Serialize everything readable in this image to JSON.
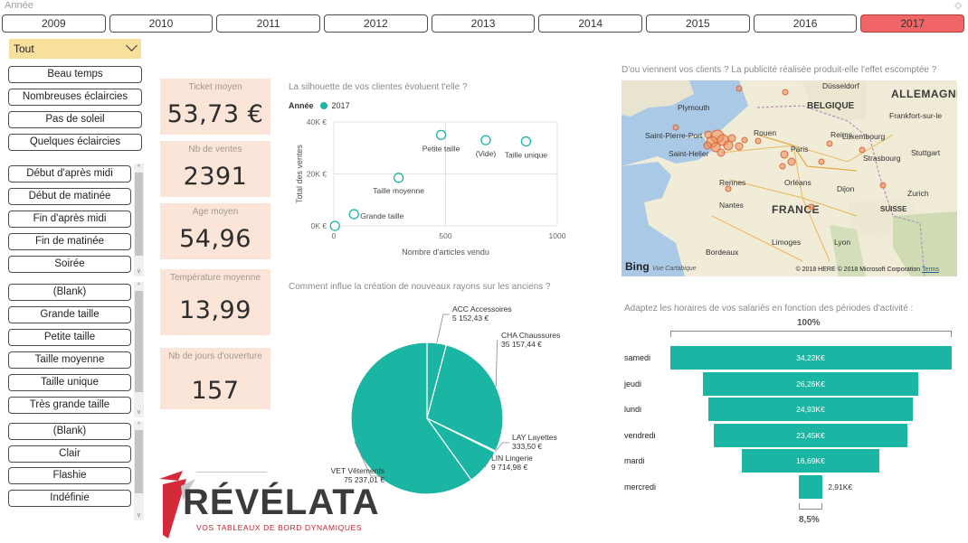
{
  "year_slicer": {
    "title": "Année",
    "years": [
      "2009",
      "2010",
      "2011",
      "2012",
      "2013",
      "2014",
      "2015",
      "2016",
      "2017"
    ],
    "selected": "2017",
    "colors": {
      "selected": "#f06565"
    }
  },
  "dropdown": {
    "value": "Tout"
  },
  "weather_slicer": [
    "Beau temps",
    "Nombreuses éclaircies",
    "Pas de soleil",
    "Quelques éclaircies"
  ],
  "time_slicer": [
    "Début d'après midi",
    "Début de matinée",
    "Fin d'après midi",
    "Fin de matinée",
    "Soirée"
  ],
  "size_slicer": [
    "(Blank)",
    "Grande taille",
    "Petite taille",
    "Taille moyenne",
    "Taille unique",
    "Très grande taille"
  ],
  "type_slicer": [
    "(Blank)",
    "Clair",
    "Flashie",
    "Indéfinie"
  ],
  "kpis": [
    {
      "label": "Ticket moyen",
      "value": "53,73 €"
    },
    {
      "label": "Nb de ventes",
      "value": "2391"
    },
    {
      "label": "Age moyen",
      "value": "54,96"
    },
    {
      "label": "Température moyenne",
      "value": "13,99"
    },
    {
      "label": "Nb de jours d'ouverture",
      "value": "157"
    }
  ],
  "scatter": {
    "title": "La silhouette de vos clientes évoluent t'elle ?",
    "legend_title": "Année",
    "legend_item": "2017",
    "xlabel": "Nombre d'articles vendu",
    "ylabel": "Total des ventes",
    "xticks": [
      "0",
      "500",
      "1000"
    ],
    "yticks": [
      "0K €",
      "20K €",
      "40K €"
    ]
  },
  "pie": {
    "title": "Comment influe la création de nouveaux rayons sur les anciens ?",
    "labels": [
      {
        "name": "ACC Accessoires",
        "value": "5 152,43 €"
      },
      {
        "name": "CHA Chaussures",
        "value": "35 157,44 €"
      },
      {
        "name": "LAY Layettes",
        "value": "333,50 €"
      },
      {
        "name": "LIN Lingerie",
        "value": "9 714,98 €"
      },
      {
        "name": "VET Vêtements",
        "value": "75 237,01 €"
      }
    ]
  },
  "map": {
    "title": "D'ou viennent vos clients ? La publicité réalisée produit-elle l'effet escomptée ?",
    "cities": [
      "Düsseldorf",
      "Plymouth",
      "Saint-Pierre-Port",
      "Saint-Helier",
      "Rouen",
      "Paris",
      "Reims",
      "Luxembourg",
      "Strasbourg",
      "Stuttgart",
      "Frankfort-sur-le",
      "Rennes",
      "Orléans",
      "Dijon",
      "Nantes",
      "Zurich",
      "Limoges",
      "Lyon",
      "Bordeaux"
    ],
    "countries": [
      "ALLEMAGNE",
      "BELGIQUE",
      "LUXEMBOURG",
      "FRANCE",
      "SUISSE"
    ],
    "bing": "Bing",
    "bing_sub": "Vue Cartabique",
    "copyright": "© 2018 HERE © 2018 Microsoft Corporation",
    "terms": "Terms"
  },
  "funnel": {
    "title": "Adaptez les horaires de vos salariés en fonction des périodes d'activité :",
    "top_pct": "100%",
    "bottom_pct": "8,5%",
    "rows": [
      {
        "day": "samedi",
        "label": "34,22K€",
        "value": 34.22
      },
      {
        "day": "jeudi",
        "label": "26,26K€",
        "value": 26.26
      },
      {
        "day": "lundi",
        "label": "24,93K€",
        "value": 24.93
      },
      {
        "day": "vendredi",
        "label": "23,45K€",
        "value": 23.45
      },
      {
        "day": "mardi",
        "label": "16,69K€",
        "value": 16.69
      },
      {
        "day": "mercredi",
        "label": "2,91K€",
        "value": 2.91
      }
    ],
    "colors": {
      "bar": "#1ab5a3"
    }
  },
  "logo": {
    "name": "RÉVÉLATA",
    "tagline": "VOS TABLEAUX DE BORD DYNAMIQUES"
  },
  "chart_data": [
    {
      "type": "scatter",
      "title": "La silhouette de vos clientes évoluent t'elle ?",
      "xlabel": "Nombre d'articles vendu",
      "ylabel": "Total des ventes",
      "xlim": [
        0,
        1000
      ],
      "ylim": [
        0,
        40000
      ],
      "series": [
        {
          "name": "2017",
          "color": "#1ab5a3",
          "points": [
            {
              "label": "Petite taille",
              "x": 480,
              "y": 35000
            },
            {
              "label": "(Vide)",
              "x": 680,
              "y": 33000
            },
            {
              "label": "Taille unique",
              "x": 860,
              "y": 32500
            },
            {
              "label": "Taille moyenne",
              "x": 290,
              "y": 18500
            },
            {
              "label": "Grande taille",
              "x": 90,
              "y": 4500
            },
            {
              "label": "",
              "x": 5,
              "y": 0
            }
          ]
        }
      ]
    },
    {
      "type": "pie",
      "title": "Comment influe la création de nouveaux rayons sur les anciens ?",
      "categories": [
        "ACC Accessoires",
        "CHA Chaussures",
        "LAY Layettes",
        "LIN Lingerie",
        "VET Vêtements"
      ],
      "values": [
        5152.43,
        35157.44,
        333.5,
        9714.98,
        75237.01
      ]
    },
    {
      "type": "bar",
      "title": "Adaptez les horaires de vos salariés en fonction des périodes d'activité :",
      "categories": [
        "samedi",
        "jeudi",
        "lundi",
        "vendredi",
        "mardi",
        "mercredi"
      ],
      "values": [
        34.22,
        26.26,
        24.93,
        23.45,
        16.69,
        2.91
      ]
    }
  ]
}
